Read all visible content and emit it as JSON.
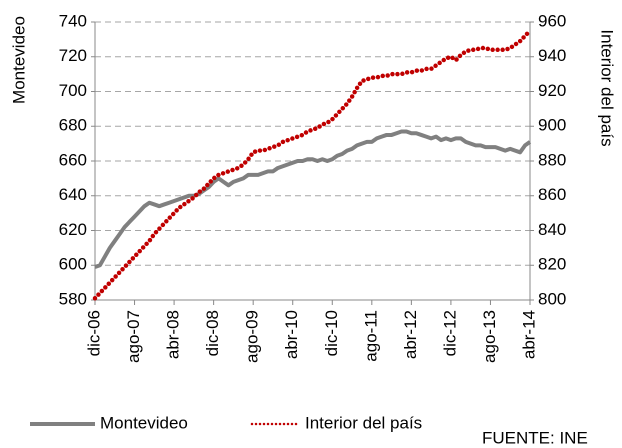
{
  "chart_data": {
    "type": "line",
    "categories": [
      "dic-06",
      null,
      null,
      null,
      null,
      null,
      null,
      null,
      "ago-07",
      null,
      null,
      null,
      null,
      null,
      null,
      null,
      "abr-08",
      null,
      null,
      null,
      null,
      null,
      null,
      null,
      "dic-08",
      null,
      null,
      null,
      null,
      null,
      null,
      null,
      "ago-09",
      null,
      null,
      null,
      null,
      null,
      null,
      null,
      "abr-10",
      null,
      null,
      null,
      null,
      null,
      null,
      null,
      "dic-10",
      null,
      null,
      null,
      null,
      null,
      null,
      null,
      "ago-11",
      null,
      null,
      null,
      null,
      null,
      null,
      null,
      "abr-12",
      null,
      null,
      null,
      null,
      null,
      null,
      null,
      "dic-12",
      null,
      null,
      null,
      null,
      null,
      null,
      null,
      "ago-13",
      null,
      null,
      null,
      null,
      null,
      null,
      null,
      "abr-14"
    ],
    "series": [
      {
        "name": "Montevideo",
        "color": "#808080",
        "values": [
          599,
          600,
          605,
          610,
          614,
          618,
          622,
          625,
          628,
          631,
          634,
          636,
          635,
          634,
          635,
          636,
          637,
          638,
          639,
          640,
          640,
          641,
          643,
          645,
          648,
          650,
          648,
          646,
          648,
          649,
          650,
          652,
          652,
          652,
          653,
          654,
          654,
          656,
          657,
          658,
          659,
          660,
          660,
          661,
          661,
          660,
          661,
          660,
          661,
          663,
          664,
          666,
          667,
          669,
          670,
          671,
          671,
          673,
          674,
          675,
          675,
          676,
          677,
          677,
          676,
          676,
          675,
          674,
          673,
          674,
          672,
          673,
          672,
          673,
          673,
          671,
          670,
          669,
          669,
          668,
          668,
          668,
          667,
          666,
          667,
          666,
          665,
          669,
          671
        ]
      },
      {
        "name": "Interior del país",
        "color": "#c00000",
        "axis": "y2",
        "values": [
          801,
          804,
          807,
          810,
          813,
          816,
          819,
          822,
          825,
          828,
          831,
          834,
          838,
          841,
          844,
          847,
          850,
          853,
          855,
          857,
          859,
          862,
          864,
          867,
          870,
          872,
          873,
          874,
          875,
          876,
          878,
          881,
          885,
          886,
          886,
          887,
          888,
          889,
          891,
          892,
          893,
          894,
          895,
          897,
          898,
          899,
          901,
          902,
          904,
          907,
          910,
          913,
          917,
          922,
          926,
          927,
          928,
          928,
          929,
          929,
          930,
          930,
          930,
          931,
          931,
          932,
          932,
          933,
          933,
          935,
          937,
          939,
          940,
          938,
          941,
          943,
          944,
          944,
          945,
          945,
          944,
          944,
          944,
          944,
          945,
          947,
          949,
          952,
          955
        ]
      }
    ],
    "y_label": "Montevideo",
    "y2_label": "Interior del país",
    "ylim": [
      580,
      740
    ],
    "yticks": [
      580,
      600,
      620,
      640,
      660,
      680,
      700,
      720,
      740
    ],
    "y2lim": [
      800,
      960
    ],
    "y2ticks": [
      800,
      820,
      840,
      860,
      880,
      900,
      920,
      940,
      960
    ],
    "grid": true,
    "legend": "bottom",
    "source": "FUENTE: INE"
  }
}
